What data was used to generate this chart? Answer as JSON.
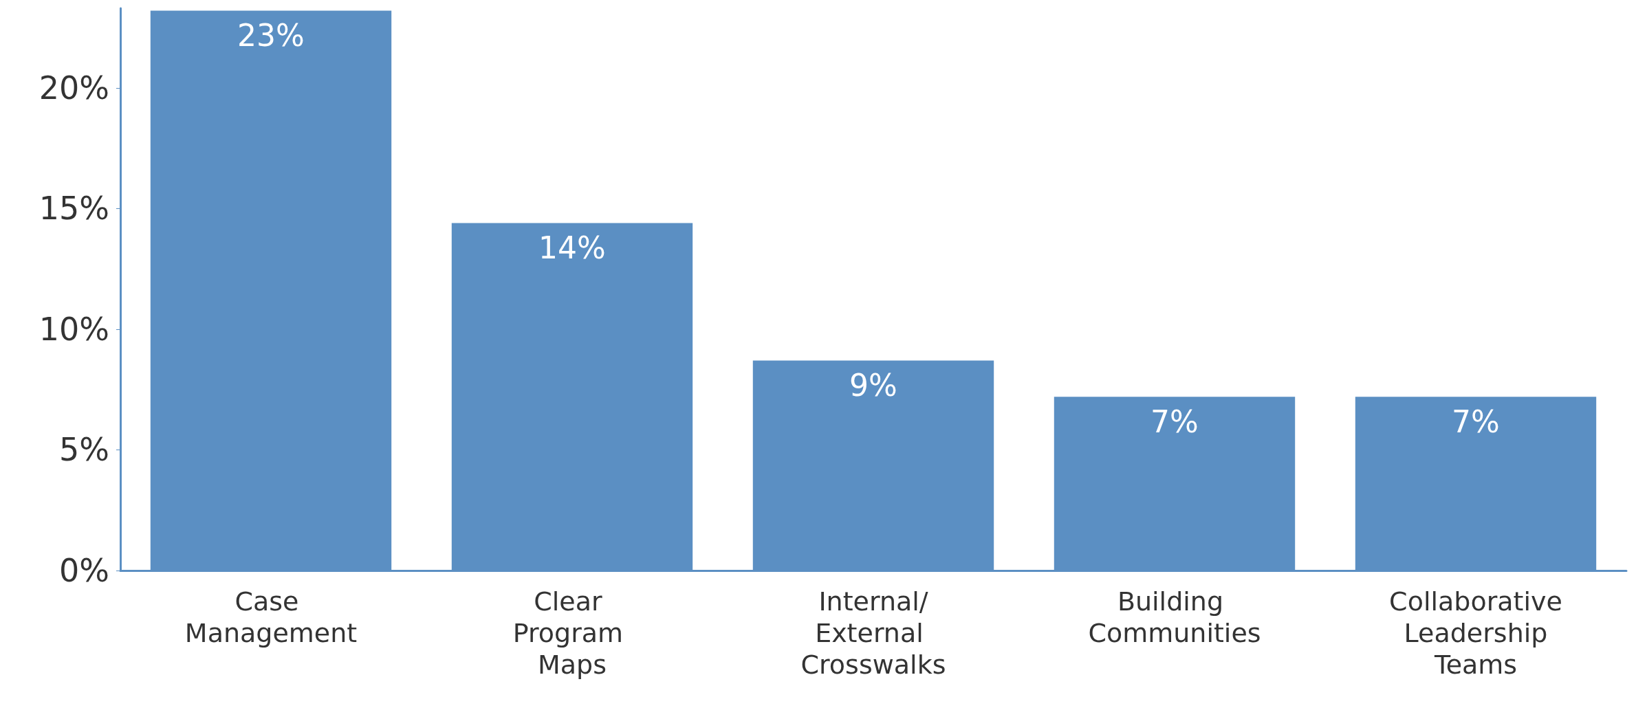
{
  "chart_data": {
    "type": "bar",
    "categories": [
      "Case Management",
      "Clear Program Maps",
      "Internal/External Crosswalks",
      "Building Communities",
      "Collaborative Leadership Teams"
    ],
    "values": [
      23.2,
      14.4,
      8.7,
      7.2,
      7.2
    ],
    "value_labels": [
      "23%",
      "14%",
      "9%",
      "7%",
      "7%"
    ],
    "color": "#5b8fc3",
    "ylim": [
      0,
      23.3
    ],
    "yticks": [
      {
        "value": 0,
        "label": "0%"
      },
      {
        "value": 5,
        "label": "5%"
      },
      {
        "value": 10,
        "label": "10%"
      },
      {
        "value": 15,
        "label": "15%"
      },
      {
        "value": 20,
        "label": "20%"
      }
    ],
    "grid": false
  }
}
